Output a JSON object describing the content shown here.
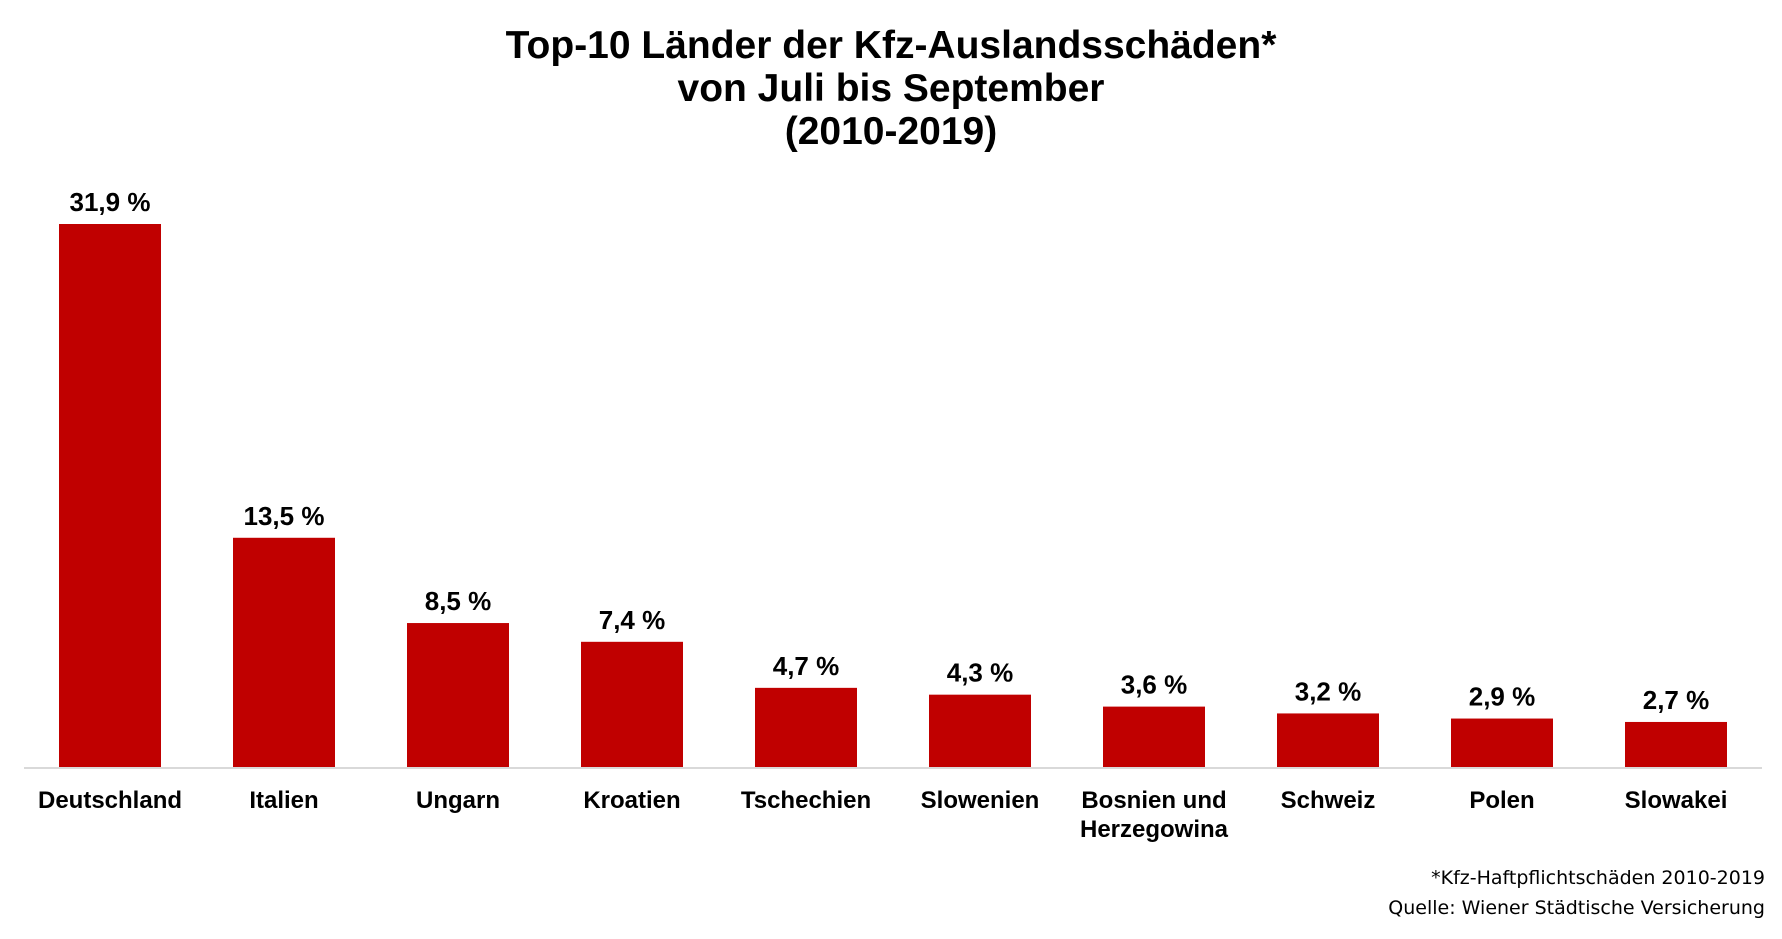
{
  "chart_data": {
    "type": "bar",
    "title_lines": [
      "Top-10 Länder der Kfz-Auslandsschäden*",
      "von Juli bis September",
      "(2010-2019)"
    ],
    "categories": [
      [
        "Deutschland"
      ],
      [
        "Italien"
      ],
      [
        "Ungarn"
      ],
      [
        "Kroatien"
      ],
      [
        "Tschechien"
      ],
      [
        "Slowenien"
      ],
      [
        "Bosnien und",
        "Herzegowina"
      ],
      [
        "Schweiz"
      ],
      [
        "Polen"
      ],
      [
        "Slowakei"
      ]
    ],
    "values": [
      31.9,
      13.5,
      8.5,
      7.4,
      4.7,
      4.3,
      3.6,
      3.2,
      2.9,
      2.7
    ],
    "data_labels": [
      "31,9 %",
      "13,5 %",
      "8,5 %",
      "7,4 %",
      "4,7 %",
      "4,3 %",
      "3,6 %",
      "3,2 %",
      "2,9 %",
      "2,7 %"
    ],
    "ylim": [
      0,
      31.9
    ],
    "xlabel": "",
    "ylabel": "",
    "grid": false,
    "legend": "none",
    "bar_color": "#C00000",
    "axis_color": "#D9D9D9",
    "footnote_lines": [
      "*Kfz-Haftpflichtschäden 2010-2019",
      "Quelle: Wiener Städtische Versicherung"
    ]
  }
}
